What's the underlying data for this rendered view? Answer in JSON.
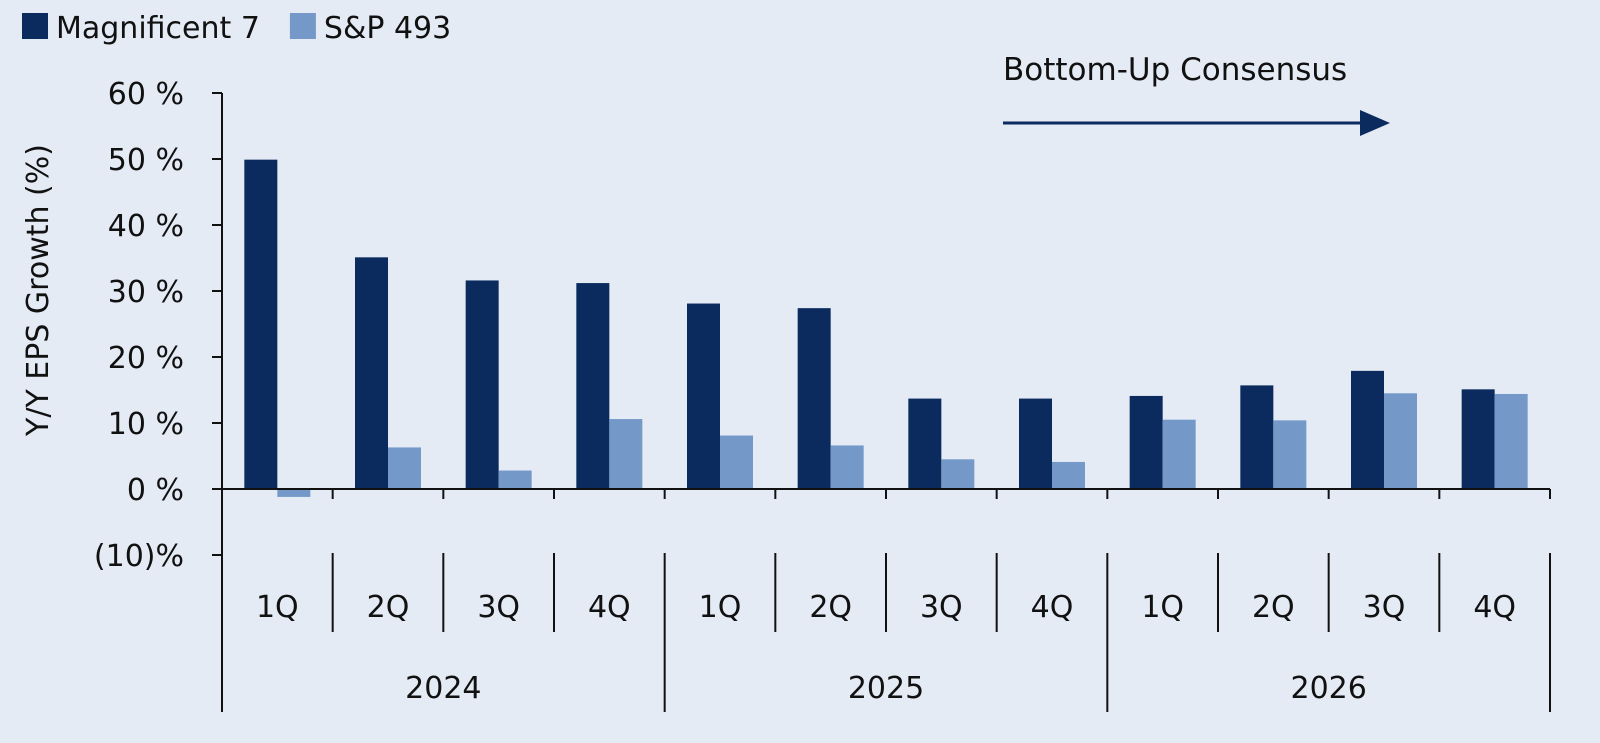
{
  "chart_data": {
    "type": "bar",
    "title": "",
    "xlabel": "",
    "ylabel": "Y/Y EPS Growth (%)",
    "ylim": [
      -10,
      60
    ],
    "yticks": [
      60,
      50,
      40,
      30,
      20,
      10,
      0,
      -10
    ],
    "ytick_labels": [
      "60 %",
      "50 %",
      "40 %",
      "30 %",
      "20 %",
      "10 %",
      "0 %",
      "(10)%"
    ],
    "categories": [
      "1Q",
      "2Q",
      "3Q",
      "4Q",
      "1Q",
      "2Q",
      "3Q",
      "4Q",
      "1Q",
      "2Q",
      "3Q",
      "4Q"
    ],
    "groups": [
      {
        "label": "2024",
        "span": 4
      },
      {
        "label": "2025",
        "span": 4
      },
      {
        "label": "2026",
        "span": 4
      }
    ],
    "series": [
      {
        "name": "Magnificent 7",
        "color": "#0b2a5e",
        "values": [
          49.9,
          35.1,
          31.6,
          31.2,
          28.1,
          27.4,
          13.7,
          13.7,
          14.1,
          15.7,
          17.9,
          15.1
        ]
      },
      {
        "name": "S&P 493",
        "color": "#7499c9",
        "values": [
          -1.2,
          6.3,
          2.8,
          10.6,
          8.1,
          6.6,
          4.5,
          4.1,
          10.5,
          10.4,
          14.5,
          14.4
        ]
      }
    ],
    "legend_position": "top-left",
    "grid": false,
    "annotation": {
      "text": "Bottom-Up Consensus",
      "arrow": "right"
    }
  }
}
